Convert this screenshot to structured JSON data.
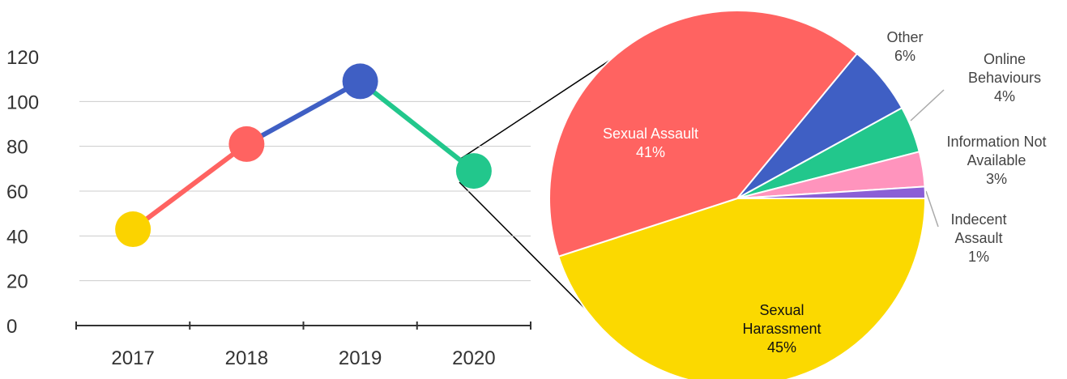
{
  "chart_data": [
    {
      "type": "line",
      "categories": [
        "2017",
        "2018",
        "2019",
        "2020"
      ],
      "values": [
        43,
        81,
        109,
        69
      ],
      "colors": [
        "#fbd300",
        "#ff6361",
        "#3f5fc4",
        "#22c78c"
      ],
      "ylim": [
        0,
        120
      ],
      "yticks": [
        0,
        20,
        40,
        60,
        80,
        100,
        120
      ],
      "grid": true
    },
    {
      "type": "pie",
      "categories": [
        "Sexual Harassment",
        "Sexual Assault",
        "Other",
        "Online Behaviours",
        "Information Not Available",
        "Indecent Assault"
      ],
      "values": [
        45,
        41,
        6,
        4,
        3,
        1
      ],
      "value_labels": [
        "45%",
        "41%",
        "6%",
        "4%",
        "3%",
        "1%"
      ],
      "colors": [
        "#fbd900",
        "#ff6361",
        "#3f5fc4",
        "#22c78c",
        "#ff94bd",
        "#8b5fd6"
      ]
    }
  ]
}
